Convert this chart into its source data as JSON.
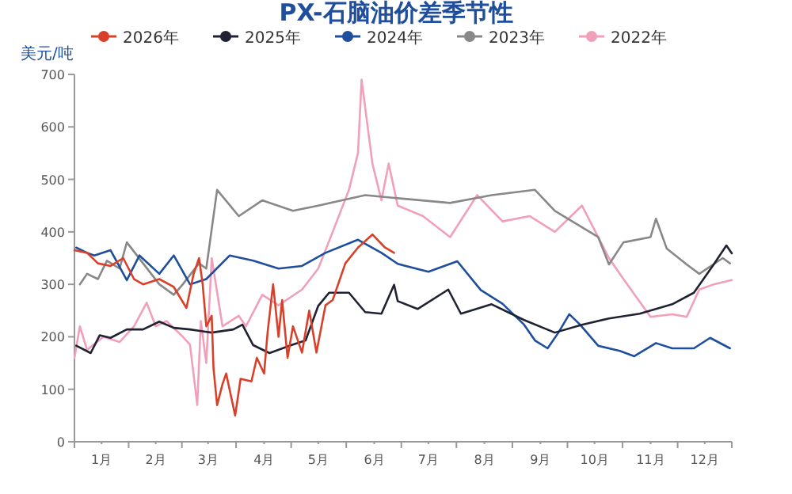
{
  "chart_data": {
    "type": "line",
    "title": "PX-石脑油价差季节性",
    "ylabel": "美元/吨",
    "legend": "top",
    "marker": "none",
    "line_style": "solid",
    "grid": false,
    "xlim": [
      "--01-01",
      "--12-31"
    ],
    "ylim": [
      0,
      700
    ],
    "yticks": [
      0,
      100,
      200,
      300,
      400,
      500,
      600,
      700
    ],
    "xticks": [
      {
        "value": "--01-16",
        "label": "1月"
      },
      {
        "value": "--02-15",
        "label": "2月"
      },
      {
        "value": "--03-16",
        "label": "3月"
      },
      {
        "value": "--04-16",
        "label": "4月"
      },
      {
        "value": "--05-16",
        "label": "5月"
      },
      {
        "value": "--06-16",
        "label": "6月"
      },
      {
        "value": "--07-16",
        "label": "7月"
      },
      {
        "value": "--08-16",
        "label": "8月"
      },
      {
        "value": "--09-16",
        "label": "9月"
      },
      {
        "value": "--10-16",
        "label": "10月"
      },
      {
        "value": "--11-16",
        "label": "11月"
      },
      {
        "value": "--12-16",
        "label": "12月"
      }
    ],
    "series": [
      {
        "name": "2026年",
        "color": "#d9402a",
        "x": [
          "--01-01",
          "--01-08",
          "--01-14",
          "--01-21",
          "--01-28",
          "--02-03",
          "--02-08",
          "--02-17",
          "--02-25",
          "--03-04",
          "--03-08",
          "--03-11",
          "--03-13",
          "--03-15",
          "--03-18",
          "--03-19",
          "--03-21",
          "--03-24",
          "--03-26",
          "--03-31",
          "--04-03",
          "--04-09",
          "--04-12",
          "--04-16",
          "--04-18",
          "--04-21",
          "--04-24",
          "--04-26",
          "--04-29",
          "--05-02",
          "--05-07",
          "--05-11",
          "--05-15",
          "--05-20",
          "--05-24",
          "--05-31",
          "--06-07",
          "--06-15",
          "--06-22",
          "--06-27"
        ],
        "values": [
          365,
          360,
          340,
          335,
          350,
          310,
          300,
          310,
          295,
          255,
          320,
          350,
          300,
          220,
          240,
          140,
          70,
          110,
          130,
          50,
          120,
          115,
          160,
          130,
          210,
          300,
          200,
          270,
          160,
          220,
          170,
          250,
          170,
          260,
          270,
          340,
          370,
          395,
          370,
          360
        ]
      },
      {
        "name": "2025年",
        "color": "#1f2233",
        "x": [
          "--01-02",
          "--01-10",
          "--01-15",
          "--01-21",
          "--01-30",
          "--02-08",
          "--02-17",
          "--02-25",
          "--03-06",
          "--03-18",
          "--03-30",
          "--04-04",
          "--04-10",
          "--04-19",
          "--05-01",
          "--05-09",
          "--05-16",
          "--05-22",
          "--06-02",
          "--06-11",
          "--06-20",
          "--06-27",
          "--06-29",
          "--07-10",
          "--07-27",
          "--08-03",
          "--08-20",
          "--09-07",
          "--09-24",
          "--10-09",
          "--10-24",
          "--11-10",
          "--11-28",
          "--12-10",
          "--12-21",
          "--12-28",
          "--12-31"
        ],
        "values": [
          183,
          169,
          203,
          198,
          214,
          214,
          229,
          217,
          214,
          208,
          214,
          223,
          184,
          169,
          184,
          193,
          259,
          284,
          284,
          247,
          244,
          299,
          268,
          253,
          290,
          244,
          262,
          232,
          208,
          223,
          235,
          244,
          262,
          284,
          338,
          374,
          359
        ]
      },
      {
        "name": "2024年",
        "color": "#1f4e9c",
        "x": [
          "--01-02",
          "--01-08",
          "--01-12",
          "--01-21",
          "--01-30",
          "--02-06",
          "--02-17",
          "--02-25",
          "--03-06",
          "--03-15",
          "--03-28",
          "--04-10",
          "--04-24",
          "--05-07",
          "--05-20",
          "--06-07",
          "--06-20",
          "--06-29",
          "--07-16",
          "--08-01",
          "--08-14",
          "--08-26",
          "--09-07",
          "--09-13",
          "--09-20",
          "--09-26",
          "--10-02",
          "--10-08",
          "--10-18",
          "--10-30",
          "--11-07",
          "--11-19",
          "--11-28",
          "--12-10",
          "--12-19",
          "--12-30"
        ],
        "values": [
          370,
          360,
          355,
          365,
          308,
          355,
          320,
          355,
          300,
          310,
          355,
          345,
          330,
          335,
          360,
          385,
          360,
          339,
          324,
          344,
          289,
          263,
          223,
          193,
          178,
          208,
          243,
          223,
          183,
          173,
          163,
          188,
          178,
          178,
          198,
          178
        ]
      },
      {
        "name": "2023年",
        "color": "#888888",
        "x": [
          "--01-04",
          "--01-08",
          "--01-14",
          "--01-19",
          "--01-26",
          "--01-30",
          "--02-08",
          "--02-17",
          "--02-25",
          "--03-02",
          "--03-11",
          "--03-15",
          "--03-21",
          "--04-02",
          "--04-15",
          "--05-02",
          "--05-16",
          "--06-11",
          "--06-26",
          "--07-28",
          "--08-20",
          "--09-13",
          "--09-24",
          "--10-18",
          "--10-24",
          "--11-01",
          "--11-16",
          "--11-19",
          "--11-25",
          "--12-06",
          "--12-13",
          "--12-26",
          "--12-30"
        ],
        "values": [
          300,
          320,
          310,
          345,
          330,
          380,
          340,
          300,
          280,
          300,
          340,
          330,
          480,
          430,
          460,
          440,
          450,
          470,
          465,
          455,
          470,
          480,
          440,
          390,
          338,
          380,
          390,
          425,
          368,
          338,
          320,
          350,
          340
        ]
      },
      {
        "name": "2022年",
        "color": "#f0a0b8",
        "x": [
          "--01-01",
          "--01-04",
          "--01-08",
          "--01-17",
          "--01-26",
          "--02-03",
          "--02-10",
          "--02-15",
          "--02-21",
          "--03-02",
          "--03-06",
          "--03-10",
          "--03-12",
          "--03-15",
          "--03-18",
          "--03-24",
          "--04-02",
          "--04-06",
          "--04-15",
          "--04-24",
          "--05-07",
          "--05-16",
          "--05-24",
          "--06-02",
          "--06-07",
          "--06-09",
          "--06-15",
          "--06-20",
          "--06-24",
          "--06-29",
          "--07-13",
          "--07-28",
          "--08-12",
          "--08-26",
          "--09-10",
          "--09-24",
          "--10-09",
          "--10-24",
          "--11-01",
          "--11-16",
          "--11-28",
          "--12-06",
          "--12-13",
          "--12-21",
          "--12-31"
        ],
        "values": [
          160,
          220,
          175,
          200,
          190,
          220,
          265,
          220,
          230,
          200,
          185,
          70,
          230,
          150,
          350,
          220,
          240,
          220,
          280,
          260,
          290,
          330,
          400,
          480,
          550,
          690,
          530,
          460,
          530,
          450,
          430,
          390,
          470,
          420,
          430,
          400,
          450,
          350,
          310,
          238,
          243,
          238,
          290,
          300,
          308
        ]
      }
    ]
  }
}
